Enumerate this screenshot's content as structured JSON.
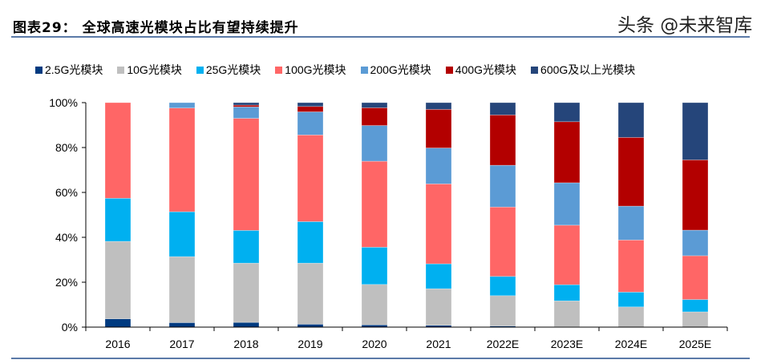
{
  "title": "图表29：  全球高速光模块占比有望持续提升",
  "watermark": "头条 @未来智库",
  "chart_data": {
    "type": "bar",
    "stacked": true,
    "title": "图表29：  全球高速光模块占比有望持续提升",
    "xlabel": "",
    "ylabel": "",
    "ylim": [
      0,
      100
    ],
    "yticks": [
      "0%",
      "20%",
      "40%",
      "60%",
      "80%",
      "100%"
    ],
    "grid": false,
    "legend_position": "top",
    "categories": [
      "2016",
      "2017",
      "2018",
      "2019",
      "2020",
      "2021",
      "2022E",
      "2023E",
      "2024E",
      "2025E"
    ],
    "series": [
      {
        "name": "2.5G光模块",
        "color": "#003a80",
        "values": [
          3.7,
          2.0,
          2.1,
          1.3,
          1.0,
          0.8,
          0.5,
          0.2,
          0,
          0
        ]
      },
      {
        "name": "10G光模块",
        "color": "#bfbfbf",
        "values": [
          34.5,
          29.4,
          26.4,
          27.2,
          18.0,
          16.3,
          13.5,
          11.5,
          9.0,
          6.8
        ]
      },
      {
        "name": "25G光模块",
        "color": "#00b0f0",
        "values": [
          19.2,
          20.0,
          14.6,
          18.5,
          16.6,
          11.1,
          8.6,
          7.2,
          6.6,
          5.5
        ]
      },
      {
        "name": "100G光模块",
        "color": "#ff6666",
        "values": [
          42.6,
          46.2,
          49.9,
          38.6,
          38.3,
          35.6,
          30.9,
          26.5,
          23.2,
          19.5
        ]
      },
      {
        "name": "200G光模块",
        "color": "#5b9bd5",
        "values": [
          0,
          2.4,
          5.1,
          10.3,
          15.9,
          16.0,
          18.6,
          18.9,
          15.1,
          11.4
        ]
      },
      {
        "name": "400G光模块",
        "color": "#b30000",
        "values": [
          0,
          0,
          0.8,
          2.4,
          7.9,
          17.2,
          22.4,
          27.2,
          30.6,
          31.3
        ]
      },
      {
        "name": "600G及以上光模块",
        "color": "#25457a",
        "values": [
          0,
          0,
          1.1,
          1.7,
          2.3,
          3.0,
          5.5,
          8.5,
          15.5,
          25.5
        ]
      }
    ]
  }
}
